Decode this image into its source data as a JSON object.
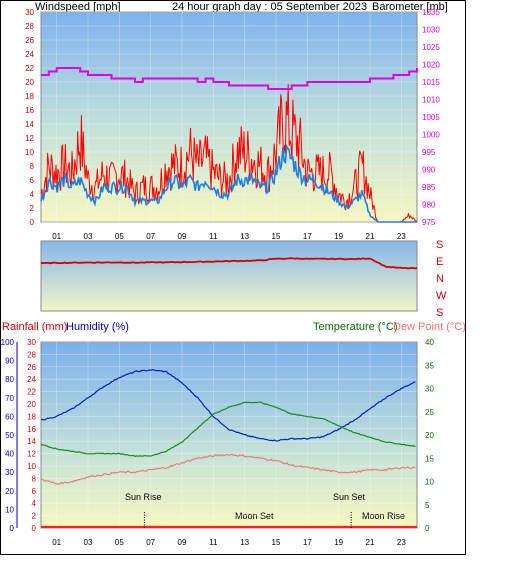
{
  "colors": {
    "wind_axis": "#d00000",
    "baro_axis": "#e000e0",
    "wind_speed": "#ff0000",
    "wind_gust": "#1e7fe0",
    "barometer": "#e000e0",
    "direction": "#d00000",
    "rain_axis": "#e00000",
    "humidity_axis": "#0000c0",
    "humidity": "#0020c0",
    "temperature": "#1a8a1a",
    "dew_point": "#f07878",
    "temp_axis": "#007000",
    "dew_label": "#ff7070",
    "hour_tick_text": "#000000",
    "events_text": "#000000"
  },
  "panel1": {
    "wind_label": "Windspeed [mph]",
    "title": "24 hour graph day : 05 September 2023",
    "baro_label": "Barometer [mb]"
  },
  "panel2": {
    "compass_labels": [
      "S",
      "E",
      "N",
      "W",
      "S"
    ]
  },
  "panel3": {
    "rain_label": "Rainfall (mm)",
    "humidity_label": "Humidity (%)",
    "temp_label": "Temperature (°C)",
    "dew_label": "Dew Point (°C)",
    "events": {
      "sunrise": "Sun Rise",
      "sunset": "Sun Set",
      "moonset": "Moon Set",
      "moonrise": "Moon Rise"
    }
  },
  "chart_data": [
    {
      "type": "line",
      "title": "24 hour graph day : 05 September 2023",
      "xlabel": "",
      "ylabel": "Windspeed [mph]",
      "y2label": "Barometer [mb]",
      "x_tick_labels": [
        "01",
        "03",
        "05",
        "07",
        "09",
        "11",
        "13",
        "15",
        "17",
        "19",
        "21",
        "23"
      ],
      "ylim": [
        0,
        30
      ],
      "y_ticks": [
        0,
        2,
        4,
        6,
        8,
        10,
        12,
        14,
        16,
        18,
        20,
        22,
        24,
        26,
        28,
        30
      ],
      "y2lim": [
        975,
        1035
      ],
      "y2_ticks": [
        975,
        980,
        985,
        990,
        995,
        1000,
        1005,
        1010,
        1015,
        1020,
        1025,
        1030,
        1035
      ],
      "grid": true,
      "series": [
        {
          "name": "Windspeed",
          "axis": "left",
          "x": [
            0,
            0.5,
            1,
            1.5,
            2,
            2.5,
            3,
            3.5,
            4,
            4.5,
            5,
            5.5,
            6,
            6.5,
            7,
            7.5,
            8,
            8.5,
            9,
            9.5,
            10,
            10.5,
            11,
            11.5,
            12,
            12.5,
            13,
            13.5,
            14,
            14.5,
            15,
            15.5,
            16,
            16.5,
            17,
            17.5,
            18,
            18.5,
            19,
            19.5,
            20,
            20.5,
            21,
            21.5,
            22,
            22.5,
            23,
            23.5,
            24
          ],
          "values": [
            4,
            8,
            7,
            8,
            7,
            12,
            6,
            5,
            7,
            6,
            7,
            6,
            4,
            5,
            5,
            5,
            8,
            8,
            8,
            10,
            8,
            9,
            7,
            6,
            6,
            10,
            10,
            9,
            8,
            7,
            10,
            15,
            13,
            11,
            7,
            7,
            7,
            7,
            4,
            3,
            5,
            8,
            4,
            0,
            0,
            0,
            0,
            1,
            0
          ]
        },
        {
          "name": "Gust",
          "axis": "left",
          "x": [
            0,
            0.5,
            1,
            1.5,
            2,
            2.5,
            3,
            3.5,
            4,
            4.5,
            5,
            5.5,
            6,
            6.5,
            7,
            7.5,
            8,
            8.5,
            9,
            9.5,
            10,
            10.5,
            11,
            11.5,
            12,
            12.5,
            13,
            13.5,
            14,
            14.5,
            15,
            15.5,
            16,
            16.5,
            17,
            17.5,
            18,
            18.5,
            19,
            19.5,
            20,
            20.5,
            21,
            21.5,
            22,
            22.5,
            23,
            23.5,
            24
          ],
          "values": [
            3,
            6,
            5,
            6,
            5,
            6,
            4,
            3,
            5,
            5,
            5,
            5,
            3,
            3,
            3,
            3,
            5,
            6,
            5,
            6,
            5,
            6,
            5,
            4,
            4,
            6,
            6,
            6,
            5,
            5,
            7,
            10,
            9,
            7,
            6,
            6,
            5,
            4,
            3,
            2,
            3,
            4,
            1,
            0,
            0,
            0,
            0,
            0,
            0
          ]
        },
        {
          "name": "Barometer",
          "axis": "right",
          "x": [
            0,
            0.5,
            1,
            1.5,
            2,
            2.5,
            3,
            3.5,
            4,
            4.5,
            5,
            5.5,
            6,
            6.5,
            7,
            7.5,
            8,
            8.5,
            9,
            9.5,
            10,
            10.5,
            11,
            11.5,
            12,
            12.5,
            13,
            13.5,
            14,
            14.5,
            15,
            15.5,
            16,
            16.5,
            17,
            17.5,
            18,
            18.5,
            19,
            19.5,
            20,
            20.5,
            21,
            21.5,
            22,
            22.5,
            23,
            23.5,
            24
          ],
          "values": [
            1017,
            1018,
            1019,
            1019,
            1019,
            1018,
            1017,
            1017,
            1017,
            1016,
            1016,
            1016,
            1015,
            1016,
            1016,
            1016,
            1016,
            1016,
            1016,
            1016,
            1015,
            1016,
            1015,
            1015,
            1014,
            1014,
            1014,
            1014,
            1014,
            1013,
            1013,
            1013,
            1014,
            1014,
            1015,
            1015,
            1015,
            1015,
            1015,
            1015,
            1015,
            1015,
            1016,
            1016,
            1016,
            1017,
            1017,
            1018,
            1019
          ]
        }
      ]
    },
    {
      "type": "line",
      "title": "",
      "ylabel": "Wind direction",
      "y_categories": [
        "S",
        "E",
        "N",
        "W",
        "S"
      ],
      "series": [
        {
          "name": "Direction",
          "x": [
            0,
            1,
            2,
            3,
            4,
            5,
            6,
            7,
            8,
            9,
            10,
            11,
            12,
            13,
            14,
            15,
            16,
            17,
            18,
            19,
            20,
            21,
            22,
            23,
            24
          ],
          "values": [
            260,
            262,
            263,
            264,
            264,
            265,
            263,
            265,
            265,
            267,
            268,
            270,
            272,
            274,
            276,
            286,
            288,
            286,
            285,
            285,
            284,
            288,
            240,
            232,
            230
          ]
        }
      ]
    },
    {
      "type": "line",
      "title": "",
      "xlabel": "",
      "x_tick_labels": [
        "01",
        "03",
        "05",
        "07",
        "09",
        "11",
        "13",
        "15",
        "17",
        "19",
        "21",
        "23"
      ],
      "y_left_outer_label": "Rainfall (mm)",
      "y_left_outer_ticks": [
        0,
        2,
        4,
        6,
        8,
        10,
        12,
        14,
        16,
        18,
        20,
        22,
        24,
        26,
        28,
        30
      ],
      "y_left_inner_label": "Humidity (%)",
      "y_left_inner_ticks": [
        0,
        10,
        20,
        30,
        40,
        50,
        60,
        70,
        80,
        90,
        100
      ],
      "y_right_label": "Temperature (°C)",
      "y_right2_label": "Dew Point (°C)",
      "y_right_ticks": [
        0,
        5,
        10,
        15,
        20,
        25,
        30,
        35,
        40
      ],
      "grid": true,
      "series": [
        {
          "name": "Humidity",
          "axis": "humidity",
          "x": [
            0,
            1,
            2,
            3,
            4,
            5,
            6,
            7,
            8,
            9,
            10,
            11,
            12,
            13,
            14,
            15,
            16,
            17,
            18,
            19,
            20,
            21,
            22,
            23,
            24
          ],
          "values": [
            58,
            60,
            64,
            70,
            76,
            81,
            84,
            85,
            84,
            78,
            70,
            60,
            53,
            50,
            48,
            47,
            48,
            48,
            49,
            53,
            58,
            64,
            70,
            75,
            79
          ]
        },
        {
          "name": "Temperature",
          "axis": "temp",
          "x": [
            0,
            1,
            2,
            3,
            4,
            5,
            6,
            7,
            8,
            9,
            10,
            11,
            12,
            13,
            14,
            15,
            16,
            17,
            18,
            19,
            20,
            21,
            22,
            23,
            24
          ],
          "values": [
            18,
            17,
            16.5,
            16,
            16,
            16,
            15.5,
            15.5,
            16.5,
            18.5,
            21.5,
            24.5,
            26,
            27,
            27,
            26,
            24.5,
            24,
            23.5,
            22,
            20.5,
            19.5,
            18.5,
            18,
            17.5
          ]
        },
        {
          "name": "Dew Point",
          "axis": "temp",
          "x": [
            0,
            1,
            2,
            3,
            4,
            5,
            6,
            7,
            8,
            9,
            10,
            11,
            12,
            13,
            14,
            15,
            16,
            17,
            18,
            19,
            20,
            21,
            22,
            23,
            24
          ],
          "values": [
            10.5,
            9.5,
            10,
            11,
            11.5,
            12,
            12,
            12.5,
            13,
            14,
            15,
            15.5,
            15.8,
            15.5,
            15,
            14.5,
            13.5,
            13,
            12.5,
            12,
            12,
            12.5,
            12.5,
            13,
            13
          ]
        },
        {
          "name": "Rainfall",
          "axis": "rain",
          "x": [
            0,
            24
          ],
          "values": [
            0,
            0
          ]
        }
      ]
    }
  ]
}
